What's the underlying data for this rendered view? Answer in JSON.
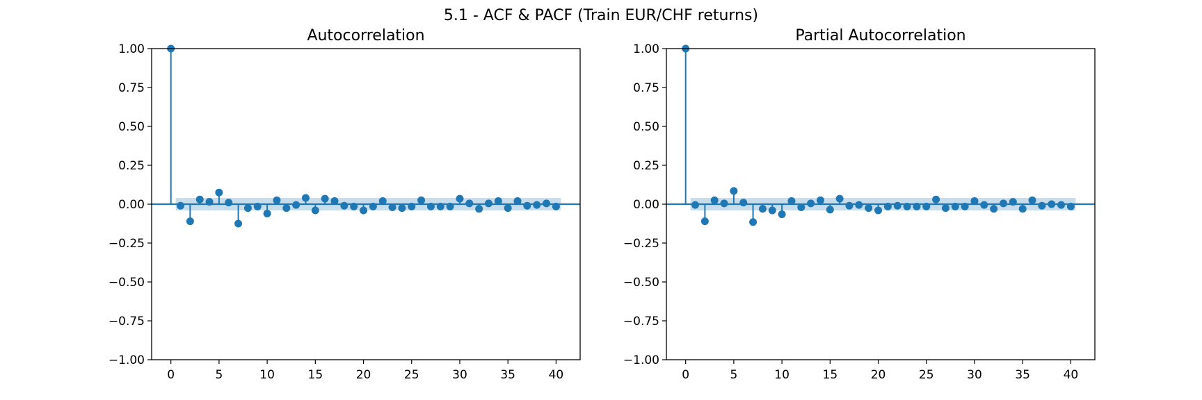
{
  "figure": {
    "suptitle": "5.1 - ACF & PACF (Train EUR/CHF returns)"
  },
  "colors": {
    "series": "#1f77b4",
    "confidence_band": "#1f77b4",
    "axes": "#000000",
    "background": "#ffffff"
  },
  "chart_data": [
    {
      "type": "stem",
      "title": "Autocorrelation",
      "xlabel": "",
      "ylabel": "",
      "xlim": [
        -2,
        42.5
      ],
      "ylim": [
        -1.0,
        1.0
      ],
      "xticks": [
        0,
        5,
        10,
        15,
        20,
        25,
        30,
        35,
        40
      ],
      "xtick_labels": [
        "0",
        "5",
        "10",
        "15",
        "20",
        "25",
        "30",
        "35",
        "40"
      ],
      "yticks": [
        1.0,
        0.75,
        0.5,
        0.25,
        0.0,
        -0.25,
        -0.5,
        -0.75,
        -1.0
      ],
      "ytick_labels": [
        "1.00",
        "0.75",
        "0.50",
        "0.25",
        "0.00",
        "−0.25",
        "−0.50",
        "−0.75",
        "−1.00"
      ],
      "grid": false,
      "confidence_band": 0.04,
      "lags": [
        0,
        1,
        2,
        3,
        4,
        5,
        6,
        7,
        8,
        9,
        10,
        11,
        12,
        13,
        14,
        15,
        16,
        17,
        18,
        19,
        20,
        21,
        22,
        23,
        24,
        25,
        26,
        27,
        28,
        29,
        30,
        31,
        32,
        33,
        34,
        35,
        36,
        37,
        38,
        39,
        40
      ],
      "values": [
        1.0,
        -0.01,
        -0.11,
        0.03,
        0.015,
        0.075,
        0.01,
        -0.125,
        -0.025,
        -0.015,
        -0.06,
        0.025,
        -0.025,
        -0.005,
        0.04,
        -0.04,
        0.035,
        0.02,
        -0.01,
        -0.015,
        -0.04,
        -0.015,
        0.02,
        -0.02,
        -0.025,
        -0.015,
        0.025,
        -0.015,
        -0.015,
        -0.015,
        0.035,
        0.005,
        -0.03,
        0.005,
        0.02,
        -0.025,
        0.02,
        -0.01,
        -0.005,
        0.005,
        -0.015
      ]
    },
    {
      "type": "stem",
      "title": "Partial Autocorrelation",
      "xlabel": "",
      "ylabel": "",
      "xlim": [
        -2,
        42.5
      ],
      "ylim": [
        -1.0,
        1.0
      ],
      "xticks": [
        0,
        5,
        10,
        15,
        20,
        25,
        30,
        35,
        40
      ],
      "xtick_labels": [
        "0",
        "5",
        "10",
        "15",
        "20",
        "25",
        "30",
        "35",
        "40"
      ],
      "yticks": [
        1.0,
        0.75,
        0.5,
        0.25,
        0.0,
        -0.25,
        -0.5,
        -0.75,
        -1.0
      ],
      "ytick_labels": [
        "1.00",
        "0.75",
        "0.50",
        "0.25",
        "0.00",
        "−0.25",
        "−0.50",
        "−0.75",
        "−1.00"
      ],
      "grid": false,
      "confidence_band": 0.04,
      "lags": [
        0,
        1,
        2,
        3,
        4,
        5,
        6,
        7,
        8,
        9,
        10,
        11,
        12,
        13,
        14,
        15,
        16,
        17,
        18,
        19,
        20,
        21,
        22,
        23,
        24,
        25,
        26,
        27,
        28,
        29,
        30,
        31,
        32,
        33,
        34,
        35,
        36,
        37,
        38,
        39,
        40
      ],
      "values": [
        1.0,
        -0.005,
        -0.11,
        0.025,
        0.005,
        0.085,
        0.01,
        -0.115,
        -0.03,
        -0.04,
        -0.065,
        0.02,
        -0.02,
        0.005,
        0.025,
        -0.035,
        0.035,
        -0.01,
        -0.005,
        -0.025,
        -0.04,
        -0.015,
        -0.01,
        -0.015,
        -0.015,
        -0.015,
        0.03,
        -0.025,
        -0.015,
        -0.015,
        0.02,
        -0.005,
        -0.03,
        0.005,
        0.015,
        -0.03,
        0.025,
        -0.01,
        0.0,
        -0.005,
        -0.015
      ]
    }
  ]
}
